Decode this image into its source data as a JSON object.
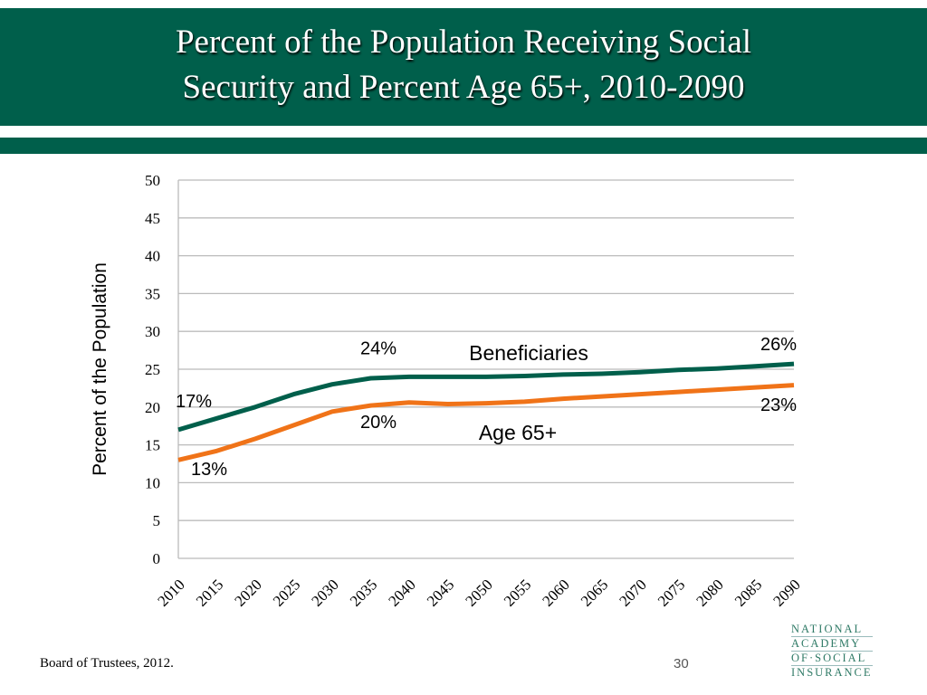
{
  "title_line1": "Percent  of the Population Receiving Social",
  "title_line2": "Security and Percent Age 65+, 2010-2090",
  "source": "Board of Trustees, 2012.",
  "page_number": "30",
  "logo": [
    "NATIONAL",
    "ACADEMY",
    "OF·SOCIAL",
    "INSURANCE"
  ],
  "chart_data": {
    "type": "line",
    "ylabel": "Percent of the Population",
    "ylim": [
      0,
      50
    ],
    "yticks": [
      0,
      5,
      10,
      15,
      20,
      25,
      30,
      35,
      40,
      45,
      50
    ],
    "x": [
      2010,
      2015,
      2020,
      2025,
      2030,
      2035,
      2040,
      2045,
      2050,
      2055,
      2060,
      2065,
      2070,
      2075,
      2080,
      2085,
      2090
    ],
    "grid": true,
    "series": [
      {
        "name": "Beneficiaries",
        "color": "#005f4b",
        "values": [
          17,
          18.5,
          20,
          21.7,
          23,
          23.8,
          24,
          24,
          24,
          24.1,
          24.3,
          24.4,
          24.6,
          24.9,
          25.1,
          25.4,
          25.7
        ]
      },
      {
        "name": "Age 65+",
        "color": "#f07318",
        "values": [
          13,
          14.2,
          15.8,
          17.6,
          19.4,
          20.2,
          20.6,
          20.4,
          20.5,
          20.7,
          21.1,
          21.4,
          21.7,
          22,
          22.3,
          22.6,
          22.9
        ]
      }
    ],
    "annotations": [
      {
        "text": "17%",
        "x": 2012,
        "y": 20
      },
      {
        "text": "24%",
        "x": 2036,
        "y": 27
      },
      {
        "text": "26%",
        "x": 2088,
        "y": 27.5
      },
      {
        "text": "13%",
        "x": 2014,
        "y": 11
      },
      {
        "text": "20%",
        "x": 2036,
        "y": 17.2
      },
      {
        "text": "23%",
        "x": 2088,
        "y": 19.5
      }
    ]
  }
}
